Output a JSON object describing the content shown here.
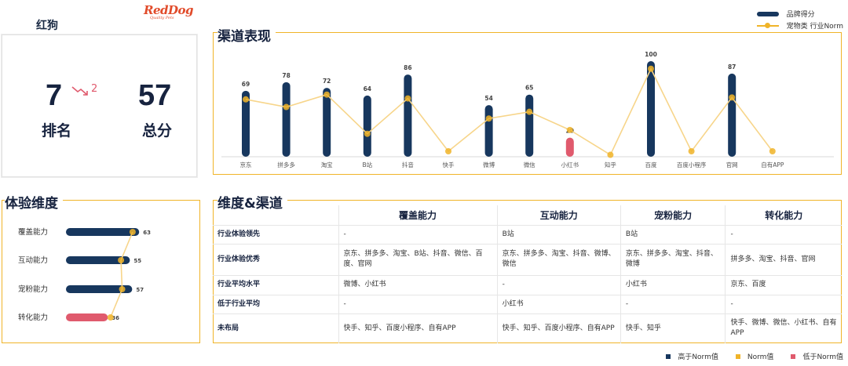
{
  "brand": {
    "name": "红狗",
    "logo_text": "RedDog",
    "logo_sub": "Quality Pets"
  },
  "rank": {
    "rank_value": "7",
    "rank_change": "2",
    "rank_label": "排名",
    "score_value": "57",
    "score_label": "总分"
  },
  "sections": {
    "channel_title": "渠道表现",
    "dimension_title": "体验维度",
    "matrix_title": "维度&渠道"
  },
  "legend_top": {
    "bar_label": "品牌得分",
    "line_label": "宠物类 行业Norm"
  },
  "colors": {
    "above_norm": "#17375e",
    "norm": "#f0b429",
    "below_norm": "#e05a6d",
    "frame": "#f0b429"
  },
  "chart_data": [
    {
      "type": "bar",
      "categories": [
        "京东",
        "拼多多",
        "淘宝",
        "B站",
        "抖音",
        "快手",
        "微博",
        "微信",
        "小红书",
        "知乎",
        "百度",
        "百度小程序",
        "官网",
        "自有APP"
      ],
      "series": [
        {
          "name": "品牌得分",
          "values": [
            69,
            78,
            72,
            64,
            86,
            0,
            54,
            65,
            20,
            0,
            100,
            0,
            87,
            0
          ]
        },
        {
          "name": "宠物类 行业Norm",
          "values": [
            60,
            52,
            65,
            24,
            61,
            0,
            40,
            47,
            28,
            2,
            92,
            0,
            62,
            0
          ]
        }
      ],
      "value_labels": [
        "69",
        "78",
        "72",
        "64",
        "86",
        "",
        "54",
        "65",
        "20",
        "",
        "100",
        "",
        "87",
        ""
      ],
      "status": [
        "above",
        "above",
        "above",
        "above",
        "above",
        "norm",
        "above",
        "above",
        "below",
        "norm",
        "above",
        "norm",
        "above",
        "norm"
      ],
      "ylim": [
        0,
        100
      ]
    },
    {
      "type": "bar",
      "categories": [
        "覆盖能力",
        "互动能力",
        "宠粉能力",
        "转化能力"
      ],
      "series": [
        {
          "name": "品牌得分",
          "values": [
            63,
            55,
            57,
            36
          ]
        },
        {
          "name": "宠物类 行业Norm",
          "values": [
            56,
            46,
            47,
            37
          ]
        }
      ],
      "status": [
        "above",
        "above",
        "above",
        "below"
      ],
      "xlim": [
        0,
        80
      ]
    }
  ],
  "matrix": {
    "columns": [
      "覆盖能力",
      "互动能力",
      "宠粉能力",
      "转化能力"
    ],
    "rows": [
      {
        "label": "行业体验领先",
        "cells": [
          "-",
          "B站",
          "B站",
          "-"
        ]
      },
      {
        "label": "行业体验优秀",
        "cells": [
          "京东、拼多多、淘宝、B站、抖音、微信、百度、官网",
          "京东、拼多多、淘宝、抖音、微博、微信",
          "京东、拼多多、淘宝、抖音、微博",
          "拼多多、淘宝、抖音、官网"
        ]
      },
      {
        "label": "行业平均水平",
        "cells": [
          "微博、小红书",
          "-",
          "小红书",
          "京东、百度"
        ]
      },
      {
        "label": "低于行业平均",
        "cells": [
          "-",
          "小红书",
          "-",
          "-"
        ]
      },
      {
        "label": "未布局",
        "cells": [
          "快手、知乎、百度小程序、自有APP",
          "快手、知乎、百度小程序、自有APP",
          "快手、知乎",
          "快手、微博、微信、小红书、自有APP"
        ]
      }
    ]
  },
  "legend_bottom": {
    "above": "高于Norm值",
    "norm": "Norm值",
    "below": "低于Norm值"
  }
}
